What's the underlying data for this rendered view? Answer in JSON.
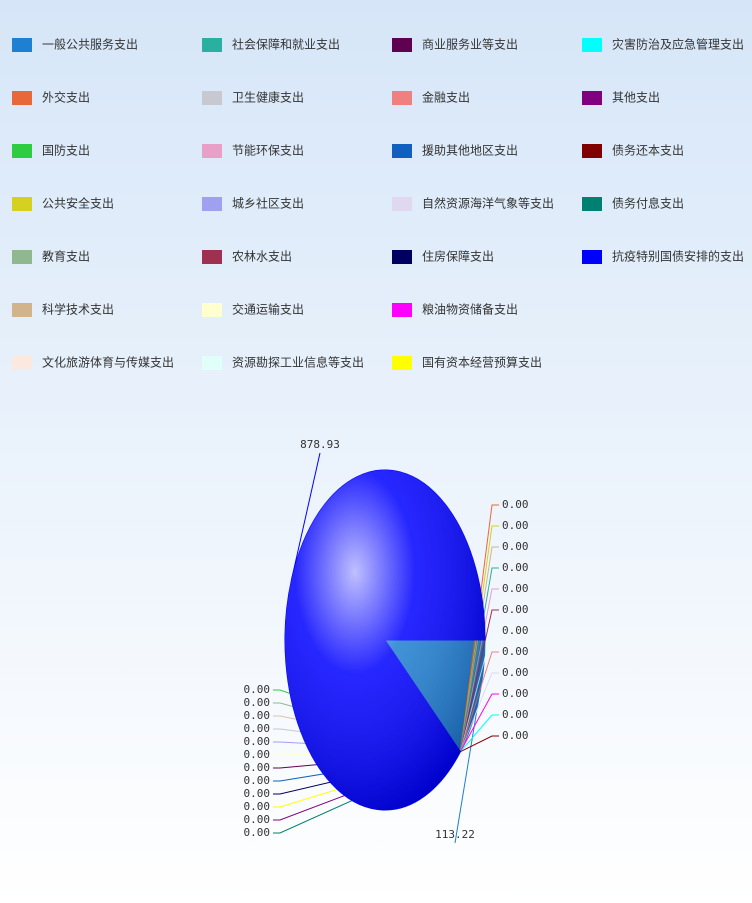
{
  "chart_data": {
    "type": "pie",
    "categories": [
      "一般公共服务支出",
      "外交支出",
      "国防支出",
      "公共安全支出",
      "教育支出",
      "科学技术支出",
      "文化旅游体育与传媒支出",
      "社会保障和就业支出",
      "卫生健康支出",
      "节能环保支出",
      "城乡社区支出",
      "农林水支出",
      "交通运输支出",
      "资源勘探工业信息等支出",
      "商业服务业等支出",
      "金融支出",
      "援助其他地区支出",
      "自然资源海洋气象等支出",
      "住房保障支出",
      "粮油物资储备支出",
      "国有资本经营预算支出",
      "灾害防治及应急管理支出",
      "其他支出",
      "债务还本支出",
      "债务付息支出",
      "抗疫特别国债安排的支出"
    ],
    "colors": [
      "#1f7fd0",
      "#e8683a",
      "#2ecc40",
      "#d6d020",
      "#90b890",
      "#d2b48c",
      "#fbe9e0",
      "#2ab0a0",
      "#c8c8d0",
      "#e8a0c8",
      "#a0a0f0",
      "#a03050",
      "#ffffd0",
      "#e0fff8",
      "#600050",
      "#f08080",
      "#1060c0",
      "#e0d8f0",
      "#000060",
      "#ff00ff",
      "#ffff00",
      "#00ffff",
      "#800080",
      "#800000",
      "#008070",
      "#0000ff"
    ],
    "values": [
      113.22,
      0,
      0,
      0,
      0,
      0,
      0,
      0,
      0,
      0,
      0,
      0,
      0,
      0,
      0,
      0,
      0,
      0,
      0,
      0,
      0,
      0,
      0,
      0,
      0,
      878.93
    ],
    "value_labels": [
      "113.22",
      "0.00",
      "0.00",
      "0.00",
      "0.00",
      "0.00",
      "0.00",
      "0.00",
      "0.00",
      "0.00",
      "0.00",
      "0.00",
      "0.00",
      "0.00",
      "0.00",
      "0.00",
      "0.00",
      "0.00",
      "0.00",
      "0.00",
      "0.00",
      "0.00",
      "0.00",
      "0.00",
      "0.00",
      "878.93"
    ]
  }
}
